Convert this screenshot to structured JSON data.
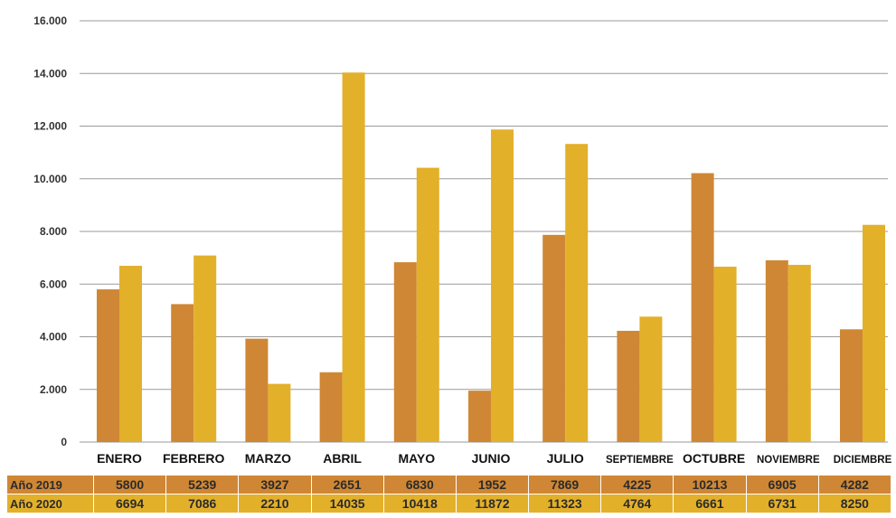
{
  "chart_data": {
    "type": "bar",
    "categories": [
      "ENERO",
      "FEBRERO",
      "MARZO",
      "ABRIL",
      "MAYO",
      "JUNIO",
      "JULIO",
      "SEPTIEMBRE",
      "OCTUBRE",
      "NOVIEMBRE",
      "DICIEMBRE"
    ],
    "series": [
      {
        "name": "Año 2019",
        "color": "#cf8735",
        "values": [
          5800,
          5239,
          3927,
          2651,
          6830,
          1952,
          7869,
          4225,
          10213,
          6905,
          4282
        ]
      },
      {
        "name": "Año 2020",
        "color": "#e3b02a",
        "values": [
          6694,
          7086,
          2210,
          14035,
          10418,
          11872,
          11323,
          4764,
          6661,
          6731,
          8250
        ]
      }
    ],
    "ylim": [
      0,
      16000
    ],
    "yticks": [
      0,
      2000,
      4000,
      6000,
      8000,
      10000,
      12000,
      14000,
      16000
    ],
    "ytick_labels": [
      "0",
      "2.000",
      "4.000",
      "6.000",
      "8.000",
      "10.000",
      "12.000",
      "14.000",
      "16.000"
    ],
    "grid": true,
    "title": "",
    "xlabel": "",
    "ylabel": ""
  },
  "table": {
    "rows": [
      {
        "label": "Año 2019",
        "values": [
          "5800",
          "5239",
          "3927",
          "2651",
          "6830",
          "1952",
          "7869",
          "4225",
          "10213",
          "6905",
          "4282"
        ]
      },
      {
        "label": "Año 2020",
        "values": [
          "6694",
          "7086",
          "2210",
          "14035",
          "10418",
          "11872",
          "11323",
          "4764",
          "6661",
          "6731",
          "8250"
        ]
      }
    ]
  }
}
